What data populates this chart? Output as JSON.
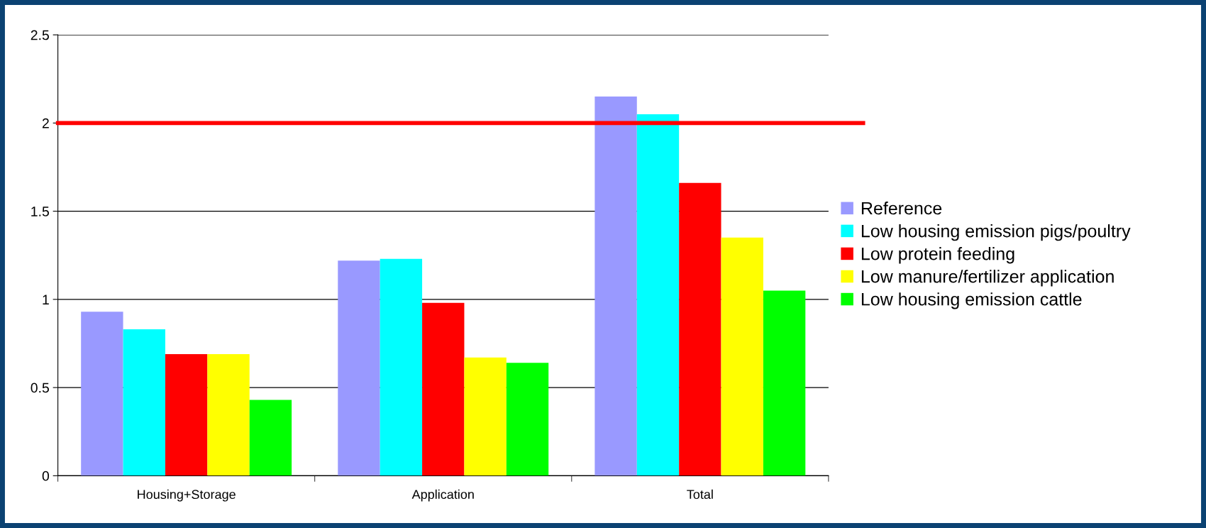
{
  "chart_data": {
    "type": "bar",
    "categories": [
      "Housing+Storage",
      "Application",
      "Total"
    ],
    "series": [
      {
        "name": "Reference",
        "color": "#9999ff",
        "values": [
          0.93,
          1.22,
          2.15
        ]
      },
      {
        "name": "Low housing emission pigs/poultry",
        "color": "#00ffff",
        "values": [
          0.83,
          1.23,
          2.05
        ]
      },
      {
        "name": "Low protein feeding",
        "color": "#ff0000",
        "values": [
          0.69,
          0.98,
          1.66
        ]
      },
      {
        "name": "Low manure/fertilizer application",
        "color": "#ffff00",
        "values": [
          0.69,
          0.67,
          1.35
        ]
      },
      {
        "name": "Low housing emission cattle",
        "color": "#00ff00",
        "values": [
          0.43,
          0.64,
          1.05
        ]
      }
    ],
    "ylim": [
      0,
      2.5
    ],
    "yticks": [
      0,
      0.5,
      1,
      1.5,
      2,
      2.5
    ],
    "ref_lines": [
      {
        "axis": "y",
        "value": 2,
        "color": "#ff0000",
        "line_style": "solid"
      }
    ],
    "grid": "y",
    "legend": "right"
  }
}
